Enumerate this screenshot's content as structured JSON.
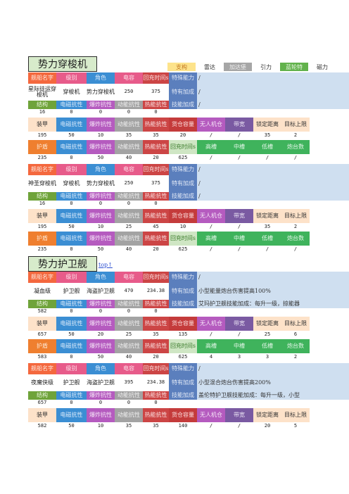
{
  "titles": {
    "section1": "势力穿梭机",
    "section2": "势力护卫舰",
    "top_link": "top↑"
  },
  "top_legend": [
    "支构",
    "雷达",
    "加达堡",
    "引力",
    "蓝轮特",
    "磁力"
  ],
  "labels": {
    "ship_name": "舰船名字",
    "level": "级别",
    "role": "角色",
    "power": "电容",
    "recharge": "回充时间s",
    "special": "特殊能力",
    "special_slash": "/",
    "bonus": "特有加成",
    "bonus_slash": "/",
    "structure": "结构",
    "em": "电磁抗性",
    "explosive": "爆炸抗性",
    "kinetic": "动能抗性",
    "thermal": "热能抗性",
    "skill_bonus": "技能加成",
    "skill_slash": "/",
    "armor": "装甲",
    "cargo": "货仓容量",
    "drone_bay": "无人机仓",
    "bandwidth": "带宽",
    "lock_range": "锁定距离",
    "target_limit": "目标上限",
    "shield": "护盾",
    "high": "高槽",
    "mid": "中槽",
    "low": "低槽",
    "turret": "炮台数",
    "slash": "/"
  },
  "sections": [
    {
      "ships": [
        {
          "name": "星际徒运穿梭机",
          "level": "穿梭机",
          "role": "势力穿梭机",
          "power": "250",
          "recharge": "375",
          "special": "",
          "bonus": "",
          "structure_vals": [
            "16",
            "0",
            "0",
            "0",
            "0"
          ],
          "skill_bonus": "",
          "armor_vals": [
            "195",
            "50",
            "10",
            "35",
            "35",
            "20",
            "/",
            "/",
            "35",
            "2"
          ],
          "shield_vals": [
            "235",
            "0",
            "50",
            "40",
            "20",
            "625",
            "/",
            "/",
            "/",
            "/"
          ]
        },
        {
          "name": "神圣穿梭机",
          "level": "穿梭机",
          "role": "势力穿梭机",
          "power": "250",
          "recharge": "375",
          "special": "",
          "bonus": "",
          "structure_vals": [
            "16",
            "0",
            "0",
            "0",
            "0"
          ],
          "skill_bonus": "",
          "armor_vals": [
            "195",
            "50",
            "10",
            "25",
            "45",
            "10",
            "/",
            "/",
            "35",
            "2"
          ],
          "shield_vals": [
            "235",
            "0",
            "50",
            "40",
            "20",
            "625",
            "/",
            "/",
            "/",
            "/"
          ]
        }
      ]
    },
    {
      "ships": [
        {
          "name": "凝血级",
          "level": "护卫舰",
          "role": "海盗护卫舰",
          "power": "470",
          "recharge": "234.38",
          "special": "",
          "bonus": "小型能量炮台伤害提高100%",
          "structure_vals": [
            "582",
            "0",
            "0",
            "0",
            "0"
          ],
          "skill_bonus": "艾玛护卫舰技能加成：每升一级，掠能器",
          "armor_vals": [
            "657",
            "50",
            "20",
            "25",
            "35",
            "135",
            "/",
            "/",
            "25",
            "6"
          ],
          "shield_vals": [
            "583",
            "0",
            "50",
            "40",
            "20",
            "625",
            "4",
            "3",
            "3",
            "2"
          ]
        },
        {
          "name": "夜魔侠级",
          "level": "护卫舰",
          "role": "海盗护卫舰",
          "power": "395",
          "recharge": "234.38",
          "special": "",
          "bonus": "小型混合炮台伤害提高200%",
          "structure_vals": [
            "657",
            "0",
            "0",
            "0",
            "0"
          ],
          "skill_bonus": "盖伦特护卫舰技能加成：每升一级，小型",
          "armor_vals": [
            "582",
            "50",
            "10",
            "35",
            "35",
            "140",
            "/",
            "/",
            "20",
            "5"
          ],
          "shield_vals": null
        }
      ]
    }
  ]
}
